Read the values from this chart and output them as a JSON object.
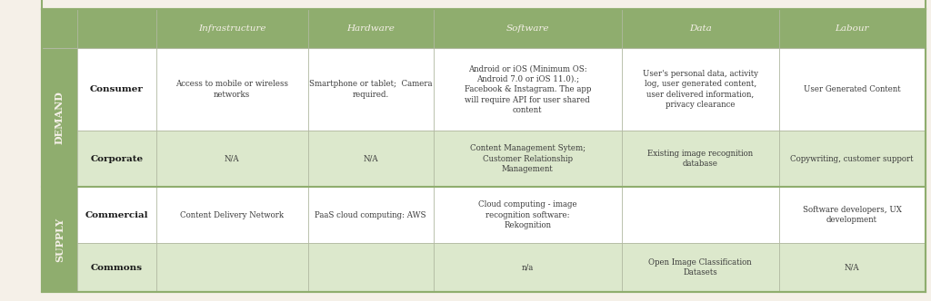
{
  "title": "",
  "col_headers": [
    "",
    "Infrastructure",
    "Hardware",
    "Software",
    "Data",
    "Labour"
  ],
  "row_groups": [
    {
      "group_label": "DEMAND",
      "rows": [
        "Consumer",
        "Corporate"
      ]
    },
    {
      "group_label": "SUPPLY",
      "rows": [
        "Commercial",
        "Commons"
      ]
    }
  ],
  "cells": {
    "Consumer": {
      "Infrastructure": "Access to mobile or wireless\nnetworks",
      "Hardware": "Smartphone or tablet;  Camera\nrequired.",
      "Software": "Android or iOS (Minimum OS:\nAndroid 7.0 or iOS 11.0).;\nFacebook & Instagram. The app\nwill require API for user shared\ncontent",
      "Data": "User's personal data, activity\nlog, user generated content,\nuser delivered information,\nprivacy clearance",
      "Labour": "User Generated Content"
    },
    "Corporate": {
      "Infrastructure": "N/A",
      "Hardware": "N/A",
      "Software": "Content Management Sytem;\nCustomer Relationship\nManagement",
      "Data": "Existing image recognition\ndatabase",
      "Labour": "Copywriting, customer support"
    },
    "Commercial": {
      "Infrastructure": "Content Delivery Network",
      "Hardware": "PaaS cloud computing: AWS",
      "Software": "Cloud computing - image\nrecognition software:\nRekognition",
      "Data": "",
      "Labour": "Software developers, UX\ndevelopment"
    },
    "Commons": {
      "Infrastructure": "",
      "Hardware": "",
      "Software": "n/a",
      "Data": "Open Image Classification\nDatasets",
      "Labour": "N/A"
    }
  },
  "header_bg": "#8fad6e",
  "header_text_color": "#f5f0e8",
  "demand_row_bg": "#ffffff",
  "demand_alt_row_bg": "#dce8cc",
  "supply_row_bg": "#ffffff",
  "supply_alt_row_bg": "#dce8cc",
  "group_label_bg": "#8fad6e",
  "group_label_text_color": "#f5f0e8",
  "border_color": "#b0b8a0",
  "outer_border_color": "#8fad6e",
  "text_color": "#3a3a3a",
  "bold_color": "#1a1a1a",
  "fig_bg": "#f5f0e8"
}
